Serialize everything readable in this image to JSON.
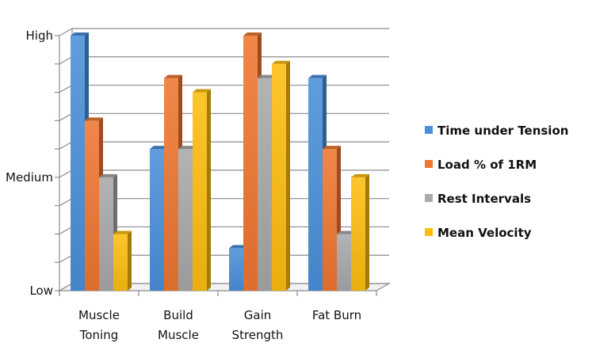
{
  "chart_data": {
    "type": "bar",
    "title": "",
    "xlabel": "",
    "ylabel": "",
    "categories": [
      [
        "Muscle",
        "Toning"
      ],
      [
        "Build",
        "Muscle"
      ],
      [
        "Gain",
        "Strength"
      ],
      [
        "Fat Burn"
      ]
    ],
    "y_tick_labels": [
      {
        "value": 0,
        "label": "Low"
      },
      {
        "value": 4,
        "label": "Medium"
      },
      {
        "value": 9,
        "label": "High"
      }
    ],
    "ylim": [
      0,
      9
    ],
    "grid": true,
    "legend_position": "right",
    "series": [
      {
        "name": "Time under Tension",
        "color": "#4a90d9",
        "values": [
          9,
          5,
          1.5,
          7.5
        ]
      },
      {
        "name": "Load % of 1RM",
        "color": "#ee7731",
        "values": [
          6,
          7.5,
          9,
          5
        ]
      },
      {
        "name": "Rest Intervals",
        "color": "#a9a9a9",
        "values": [
          4,
          5,
          7.5,
          2
        ]
      },
      {
        "name": "Mean Velocity",
        "color": "#fdbd10",
        "values": [
          2,
          7,
          8,
          4
        ]
      }
    ]
  }
}
